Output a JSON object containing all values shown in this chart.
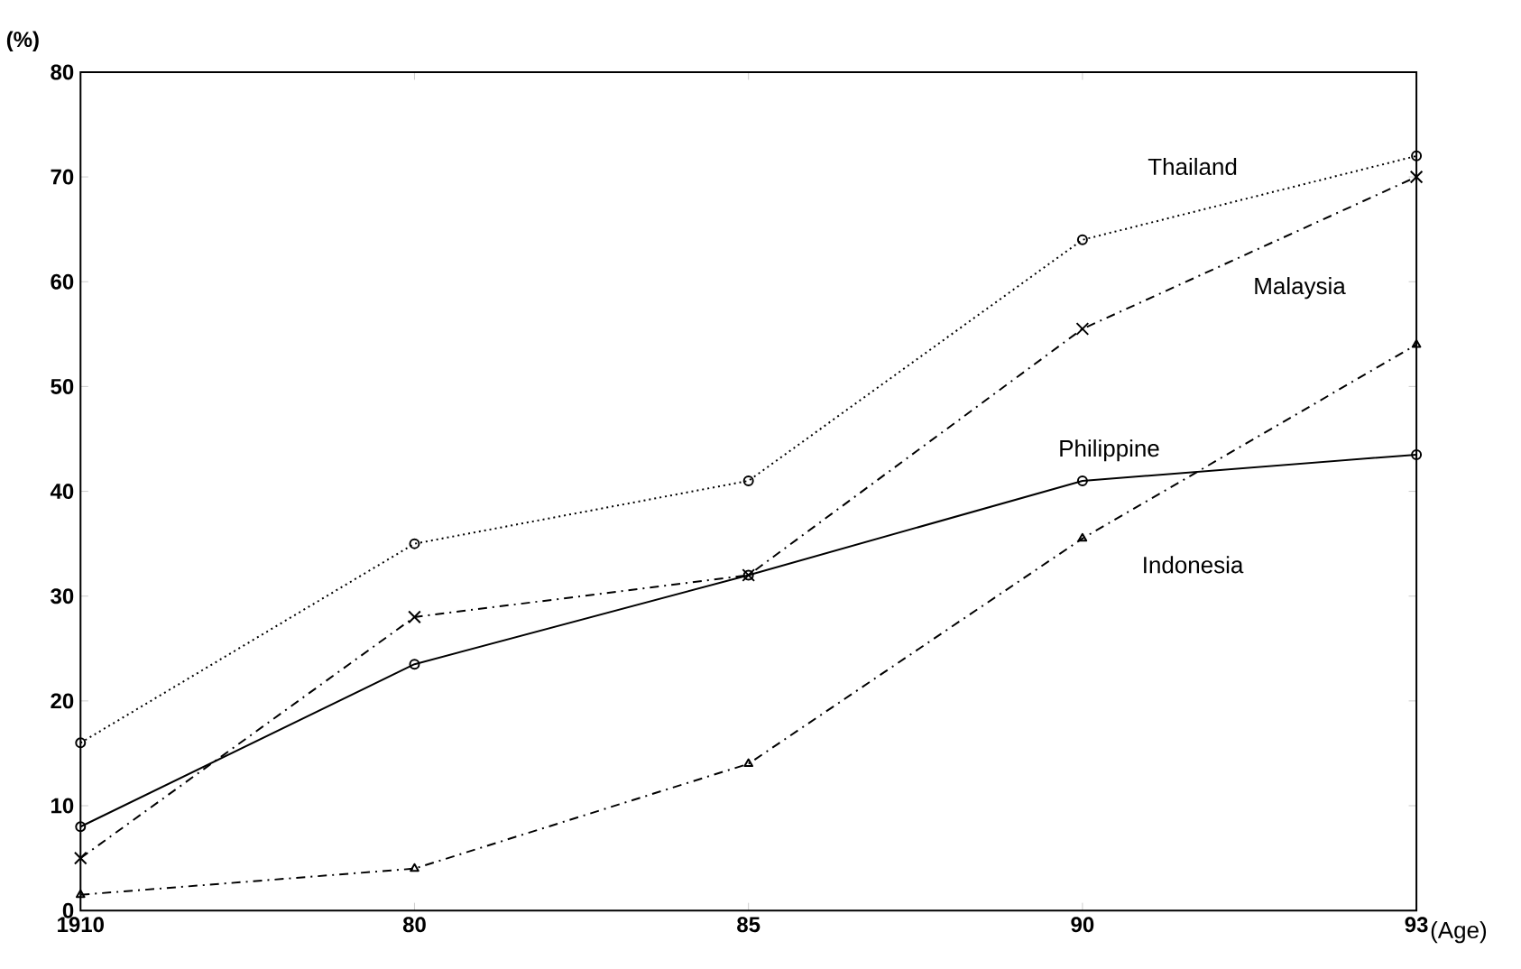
{
  "chart_data": {
    "type": "line",
    "xlabel": "(Age)",
    "ylabel": "(%)",
    "categories": [
      "1910",
      "80",
      "85",
      "90",
      "93"
    ],
    "ylim": [
      0,
      80
    ],
    "yticks": [
      0,
      10,
      20,
      30,
      40,
      50,
      60,
      70,
      80
    ],
    "grid": false,
    "series": [
      {
        "name": "Thailand",
        "color": "#000000",
        "line_style": "dotted",
        "marker": "circle",
        "values": [
          16,
          35,
          41,
          64,
          72
        ]
      },
      {
        "name": "Malaysia",
        "color": "#000000",
        "line_style": "dashed",
        "marker": "cross",
        "values": [
          5,
          28,
          32,
          55.5,
          70
        ]
      },
      {
        "name": "Philippine",
        "color": "#000000",
        "line_style": "solid",
        "marker": "circle",
        "values": [
          8,
          23.5,
          32,
          41,
          43.5
        ]
      },
      {
        "name": "Indonesia",
        "color": "#000000",
        "line_style": "dashed",
        "marker": "triangle",
        "values": [
          1.5,
          4,
          14,
          35.5,
          54
        ]
      }
    ]
  }
}
